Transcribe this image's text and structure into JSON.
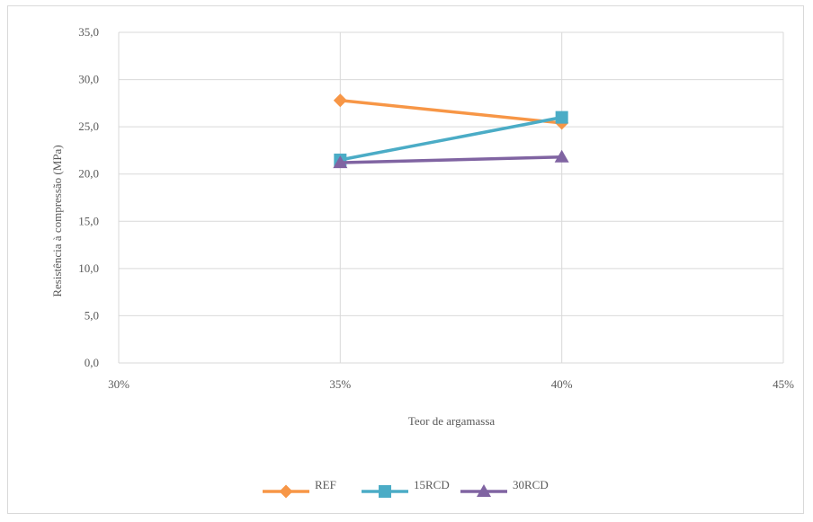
{
  "chart_data": {
    "type": "line",
    "xlabel": "Teor de argamassa",
    "ylabel": "Resistência à compressão (MPa)",
    "xlim": [
      0.3,
      0.45
    ],
    "ylim": [
      0,
      35
    ],
    "x_ticks": [
      "30%",
      "35%",
      "40%",
      "45%"
    ],
    "y_ticks": [
      "0,0",
      "5,0",
      "10,0",
      "15,0",
      "20,0",
      "25,0",
      "30,0",
      "35,0"
    ],
    "x": [
      0.35,
      0.4
    ],
    "grid": true,
    "legend_position": "bottom",
    "series": [
      {
        "name": "REF",
        "values": [
          27.8,
          25.4
        ],
        "color": "#f79646",
        "marker": "diamond"
      },
      {
        "name": "15RCD",
        "values": [
          21.5,
          26.0
        ],
        "color": "#4bacc6",
        "marker": "square"
      },
      {
        "name": "30RCD",
        "values": [
          21.2,
          21.8
        ],
        "color": "#8064a2",
        "marker": "triangle"
      }
    ]
  }
}
